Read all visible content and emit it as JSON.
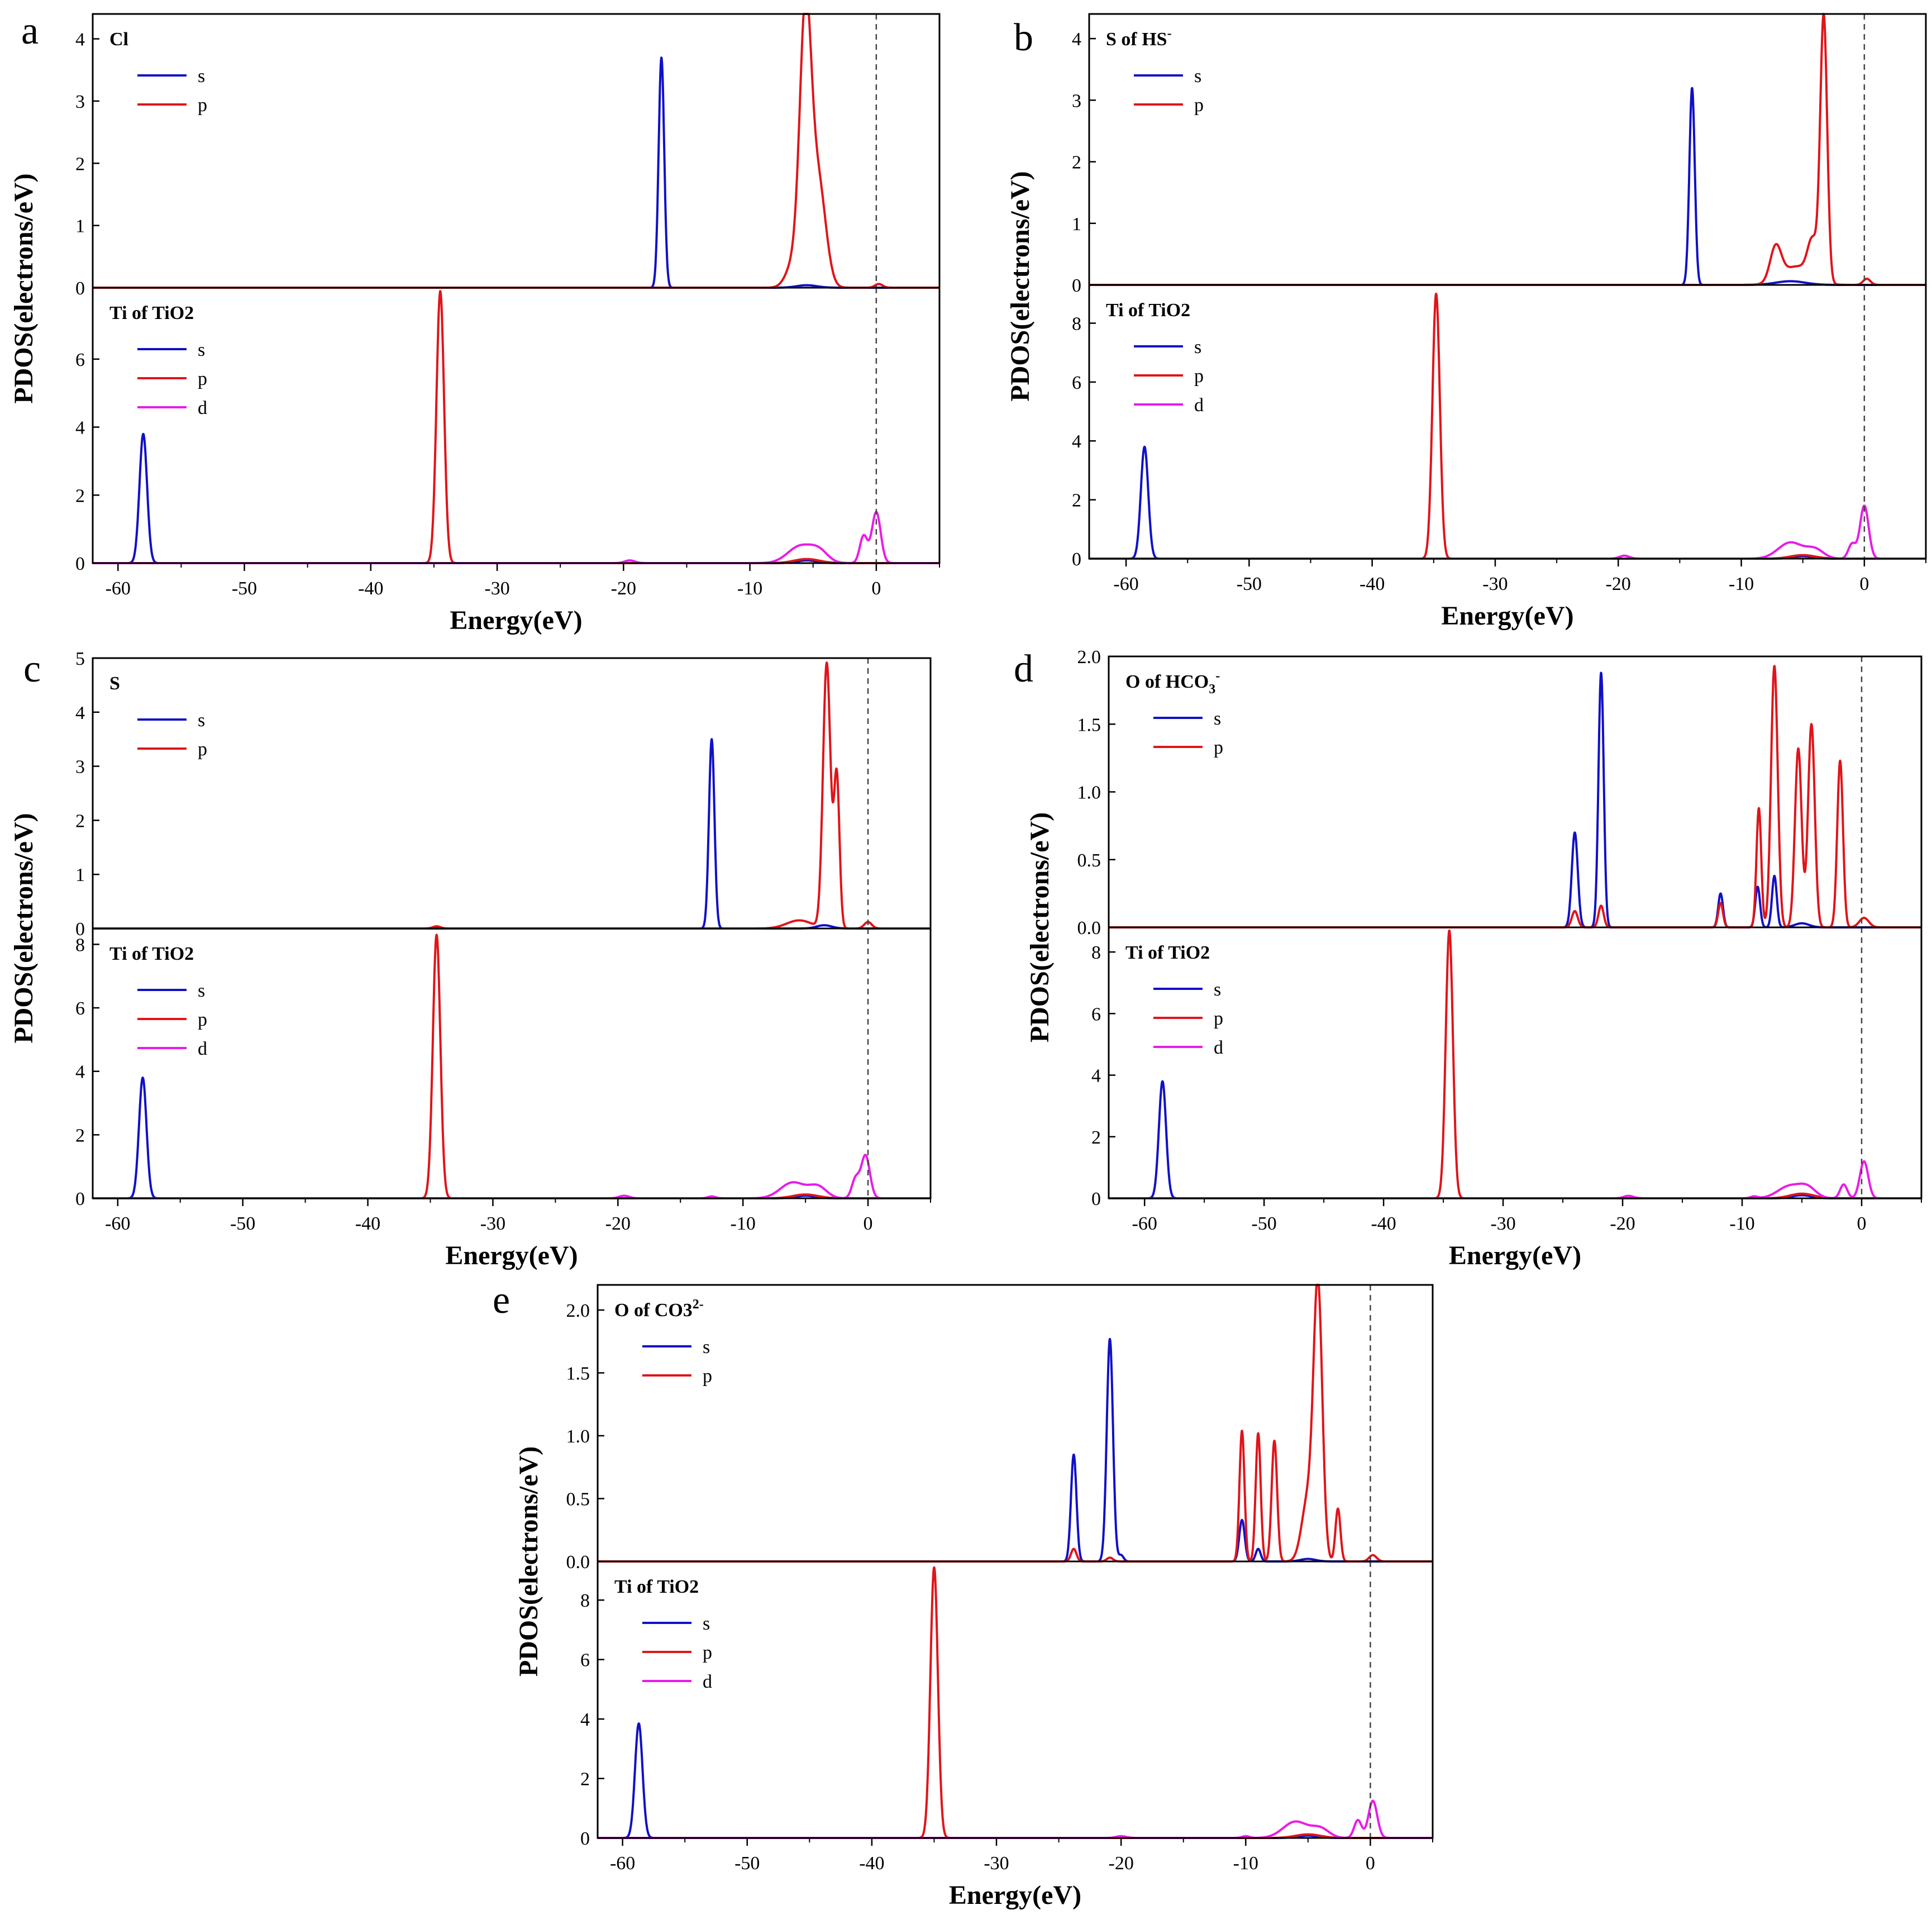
{
  "x_label": "Energy(eV)",
  "y_label": "PDOS(electrons/eV)",
  "colors": {
    "s": "#1010c8",
    "p": "#e0141a",
    "d": "#e81ce8",
    "fermi": "#444444"
  },
  "chart_data": [
    {
      "letter": "a",
      "type": "line",
      "xlim": [
        -62,
        5
      ],
      "xticks": [
        -60,
        -50,
        -40,
        -30,
        -20,
        -10,
        0
      ],
      "top": {
        "title": "Cl",
        "ylim": [
          0,
          4.4
        ],
        "yticks": [
          0,
          1,
          2,
          3,
          4
        ],
        "series": [
          {
            "name": "s",
            "peaks": [
              [
                -17,
                3.7,
                0.22
              ],
              [
                -5.5,
                0.04,
                0.8
              ]
            ]
          },
          {
            "name": "p",
            "peaks": [
              [
                -5.6,
                4.2,
                0.45
              ],
              [
                -4.6,
                1.7,
                0.6
              ],
              [
                -6.5,
                0.4,
                0.6
              ],
              [
                0.2,
                0.06,
                0.3
              ]
            ]
          }
        ]
      },
      "bottom": {
        "title": "Ti of TiO2",
        "ylim": [
          0,
          8.1
        ],
        "yticks": [
          0,
          2,
          4,
          6
        ],
        "series": [
          {
            "name": "s",
            "peaks": [
              [
                -58,
                3.8,
                0.3
              ],
              [
                -5.5,
                0.08,
                0.8
              ]
            ]
          },
          {
            "name": "p",
            "peaks": [
              [
                -34.5,
                8.0,
                0.3
              ],
              [
                -5.5,
                0.12,
                1.0
              ]
            ]
          },
          {
            "name": "d",
            "peaks": [
              [
                -6,
                0.5,
                1.0
              ],
              [
                -4.5,
                0.3,
                0.7
              ],
              [
                -1,
                0.8,
                0.3
              ],
              [
                0,
                1.5,
                0.35
              ],
              [
                -19.5,
                0.08,
                0.4
              ]
            ]
          }
        ]
      }
    },
    {
      "letter": "b",
      "type": "line",
      "xlim": [
        -63,
        5
      ],
      "xticks": [
        -60,
        -50,
        -40,
        -30,
        -20,
        -10,
        0
      ],
      "top": {
        "title": "S of HS",
        "title_sup": "-",
        "ylim": [
          0,
          4.4
        ],
        "yticks": [
          0,
          1,
          2,
          3,
          4
        ],
        "series": [
          {
            "name": "s",
            "peaks": [
              [
                -14,
                3.2,
                0.22
              ],
              [
                -6,
                0.06,
                1.2
              ]
            ]
          },
          {
            "name": "p",
            "peaks": [
              [
                -3.3,
                4.3,
                0.28
              ],
              [
                -7.2,
                0.55,
                0.45
              ],
              [
                -5.5,
                0.3,
                1.2
              ],
              [
                -4.2,
                0.6,
                0.4
              ],
              [
                0.2,
                0.1,
                0.3
              ]
            ]
          }
        ]
      },
      "bottom": {
        "title": "Ti of TiO2",
        "ylim": [
          0,
          9.3
        ],
        "yticks": [
          0,
          2,
          4,
          6,
          8
        ],
        "series": [
          {
            "name": "s",
            "peaks": [
              [
                -58.5,
                3.8,
                0.3
              ],
              [
                -5,
                0.08,
                0.8
              ]
            ]
          },
          {
            "name": "p",
            "peaks": [
              [
                -34.8,
                9.0,
                0.3
              ],
              [
                -5,
                0.12,
                1.0
              ]
            ]
          },
          {
            "name": "d",
            "peaks": [
              [
                -6,
                0.55,
                1.0
              ],
              [
                -4,
                0.3,
                0.7
              ],
              [
                -1,
                0.5,
                0.3
              ],
              [
                0,
                1.8,
                0.35
              ],
              [
                -19.5,
                0.1,
                0.4
              ]
            ]
          }
        ]
      }
    },
    {
      "letter": "c",
      "type": "line",
      "xlim": [
        -62,
        5
      ],
      "xticks": [
        -60,
        -50,
        -40,
        -30,
        -20,
        -10,
        0
      ],
      "top": {
        "title": "S",
        "ylim": [
          0,
          5
        ],
        "yticks": [
          0,
          1,
          2,
          3,
          4,
          5
        ],
        "series": [
          {
            "name": "s",
            "peaks": [
              [
                -12.5,
                3.5,
                0.22
              ],
              [
                -3.5,
                0.06,
                0.6
              ]
            ]
          },
          {
            "name": "p",
            "peaks": [
              [
                -3.3,
                4.9,
                0.3
              ],
              [
                -2.5,
                2.8,
                0.22
              ],
              [
                -5.5,
                0.15,
                1.0
              ],
              [
                0,
                0.12,
                0.3
              ],
              [
                -34.5,
                0.04,
                0.3
              ]
            ]
          }
        ]
      },
      "bottom": {
        "title": "Ti of TiO2",
        "ylim": [
          0,
          8.5
        ],
        "yticks": [
          0,
          2,
          4,
          6,
          8
        ],
        "series": [
          {
            "name": "s",
            "peaks": [
              [
                -58,
                3.8,
                0.3
              ],
              [
                -5,
                0.08,
                0.8
              ]
            ]
          },
          {
            "name": "p",
            "peaks": [
              [
                -34.5,
                8.3,
                0.3
              ],
              [
                -5,
                0.12,
                1.0
              ]
            ]
          },
          {
            "name": "d",
            "peaks": [
              [
                -6,
                0.5,
                1.0
              ],
              [
                -4,
                0.35,
                0.7
              ],
              [
                -1,
                0.6,
                0.3
              ],
              [
                -0.2,
                1.35,
                0.35
              ],
              [
                -19.5,
                0.08,
                0.4
              ],
              [
                -12.5,
                0.06,
                0.3
              ]
            ]
          }
        ]
      }
    },
    {
      "letter": "d",
      "type": "line",
      "xlim": [
        -63,
        5
      ],
      "xticks": [
        -60,
        -50,
        -40,
        -30,
        -20,
        -10,
        0
      ],
      "top": {
        "title": "O of HCO",
        "title_sub": "3",
        "title_sup": "-",
        "ylim": [
          0,
          2.0
        ],
        "yticks": [
          0.0,
          0.5,
          1.0,
          1.5,
          2.0
        ],
        "series": [
          {
            "name": "s",
            "peaks": [
              [
                -24,
                0.7,
                0.25
              ],
              [
                -21.8,
                1.88,
                0.22
              ],
              [
                -11.8,
                0.25,
                0.2
              ],
              [
                -8.7,
                0.3,
                0.2
              ],
              [
                -7.3,
                0.38,
                0.2
              ],
              [
                -5,
                0.03,
                0.6
              ]
            ]
          },
          {
            "name": "p",
            "peaks": [
              [
                -24,
                0.12,
                0.25
              ],
              [
                -21.8,
                0.16,
                0.22
              ],
              [
                -11.8,
                0.18,
                0.2
              ],
              [
                -8.6,
                0.88,
                0.2
              ],
              [
                -7.3,
                1.93,
                0.28
              ],
              [
                -5.3,
                1.32,
                0.28
              ],
              [
                -4.2,
                1.5,
                0.28
              ],
              [
                -1.8,
                1.23,
                0.24
              ],
              [
                0.2,
                0.07,
                0.4
              ]
            ]
          }
        ]
      },
      "bottom": {
        "title": "Ti of TiO2",
        "ylim": [
          0,
          8.8
        ],
        "yticks": [
          0,
          2,
          4,
          6,
          8
        ],
        "series": [
          {
            "name": "s",
            "peaks": [
              [
                -58.5,
                3.8,
                0.3
              ],
              [
                -5,
                0.1,
                0.8
              ]
            ]
          },
          {
            "name": "p",
            "peaks": [
              [
                -34.5,
                8.7,
                0.3
              ],
              [
                -5,
                0.15,
                1.0
              ]
            ]
          },
          {
            "name": "d",
            "peaks": [
              [
                -6,
                0.4,
                1.0
              ],
              [
                -4.5,
                0.3,
                0.7
              ],
              [
                -1.5,
                0.45,
                0.3
              ],
              [
                0.2,
                1.2,
                0.35
              ],
              [
                -19.5,
                0.08,
                0.4
              ],
              [
                -9,
                0.06,
                0.3
              ]
            ]
          }
        ]
      }
    },
    {
      "letter": "e",
      "type": "line",
      "xlim": [
        -62,
        5
      ],
      "xticks": [
        -60,
        -50,
        -40,
        -30,
        -20,
        -10,
        0
      ],
      "top": {
        "title": "O of CO3",
        "title_sup": "2-",
        "ylim": [
          0,
          2.2
        ],
        "yticks": [
          0.0,
          0.5,
          1.0,
          1.5,
          2.0
        ],
        "series": [
          {
            "name": "s",
            "peaks": [
              [
                -23.8,
                0.85,
                0.22
              ],
              [
                -20.9,
                1.77,
                0.25
              ],
              [
                -10.3,
                0.33,
                0.22
              ],
              [
                -9,
                0.1,
                0.2
              ],
              [
                -20,
                0.05,
                0.2
              ],
              [
                -5,
                0.02,
                0.6
              ]
            ]
          },
          {
            "name": "p",
            "peaks": [
              [
                -23.8,
                0.1,
                0.22
              ],
              [
                -20.9,
                0.03,
                0.25
              ],
              [
                -10.3,
                1.04,
                0.2
              ],
              [
                -9,
                1.02,
                0.2
              ],
              [
                -7.7,
                0.96,
                0.22
              ],
              [
                -5,
                0.5,
                0.5
              ],
              [
                -4.2,
                2.12,
                0.35
              ],
              [
                -2.6,
                0.42,
                0.2
              ],
              [
                0.2,
                0.05,
                0.3
              ]
            ]
          }
        ]
      },
      "bottom": {
        "title": "Ti of TiO2",
        "ylim": [
          0,
          9.3
        ],
        "yticks": [
          0,
          2,
          4,
          6,
          8
        ],
        "series": [
          {
            "name": "s",
            "peaks": [
              [
                -58.7,
                3.85,
                0.3
              ],
              [
                -5,
                0.08,
                0.8
              ]
            ]
          },
          {
            "name": "p",
            "peaks": [
              [
                -35,
                9.1,
                0.3
              ],
              [
                -5,
                0.12,
                1.0
              ]
            ]
          },
          {
            "name": "d",
            "peaks": [
              [
                -6,
                0.55,
                1.0
              ],
              [
                -4,
                0.3,
                0.7
              ],
              [
                -1,
                0.6,
                0.3
              ],
              [
                0.2,
                1.25,
                0.35
              ],
              [
                -20,
                0.06,
                0.4
              ],
              [
                -10,
                0.06,
                0.3
              ]
            ]
          }
        ]
      }
    }
  ]
}
